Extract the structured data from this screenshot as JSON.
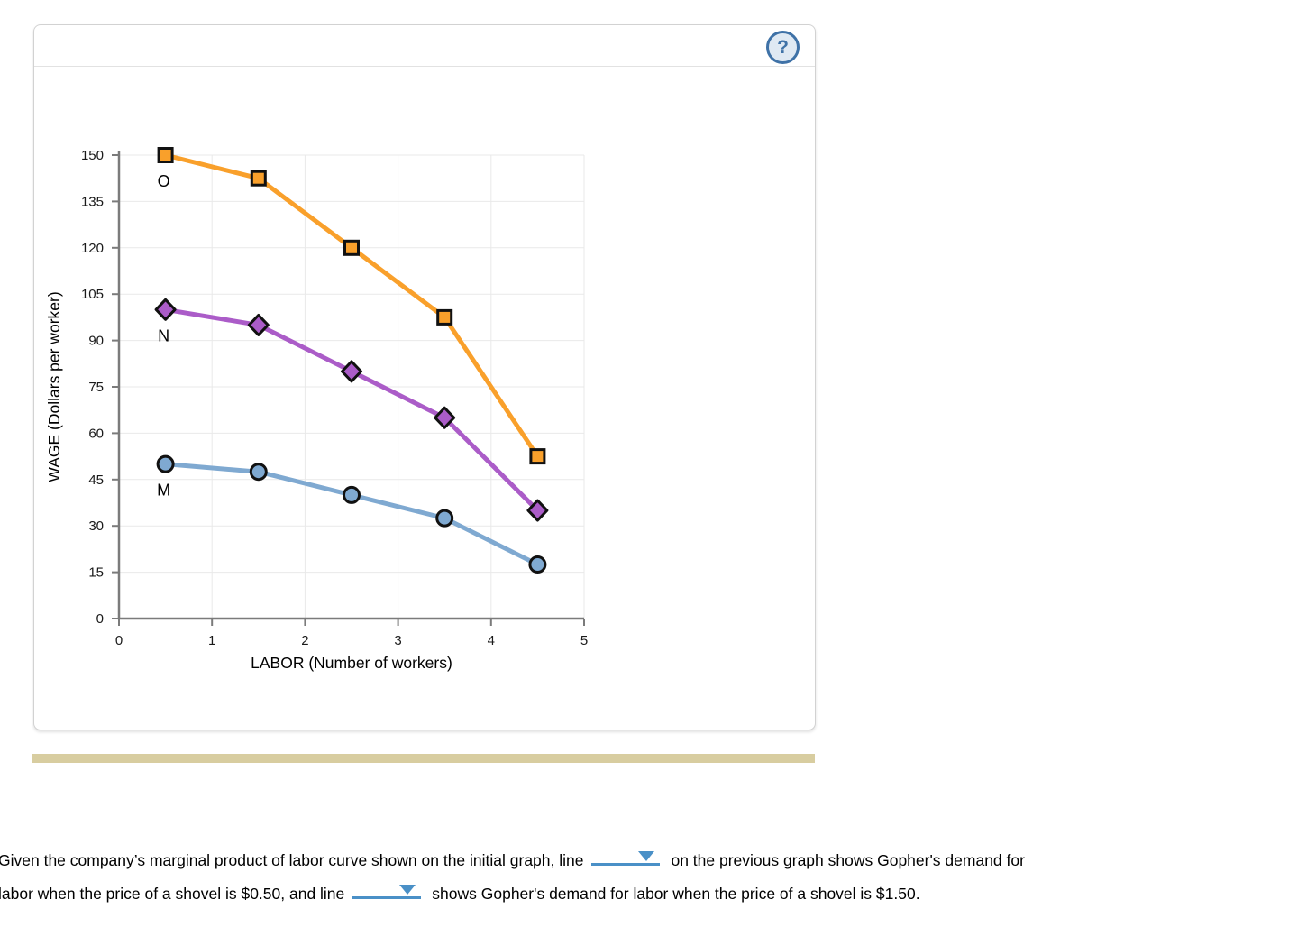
{
  "panel": {
    "help_label": "?"
  },
  "chart_data": {
    "type": "line",
    "x": [
      0.5,
      1.5,
      2.5,
      3.5,
      4.5
    ],
    "series": [
      {
        "name": "O",
        "marker": "square",
        "color": "#F9A02B",
        "values": [
          150,
          142.5,
          120,
          97.5,
          52.5
        ]
      },
      {
        "name": "N",
        "marker": "diamond",
        "color": "#AB5CC8",
        "values": [
          100,
          95,
          80,
          65,
          35
        ]
      },
      {
        "name": "M",
        "marker": "circle",
        "color": "#7FA9D1",
        "values": [
          50,
          47.5,
          40,
          32.5,
          17.5
        ]
      }
    ],
    "title": "",
    "xlabel": "LABOR (Number of workers)",
    "ylabel": "WAGE (Dollars per worker)",
    "xlim": [
      0,
      5
    ],
    "ylim": [
      0,
      150
    ],
    "x_ticks": [
      0,
      1,
      2,
      3,
      4,
      5
    ],
    "y_ticks": [
      0,
      15,
      30,
      45,
      60,
      75,
      90,
      105,
      120,
      135,
      150
    ],
    "grid": true,
    "legend_position": "none"
  },
  "question": {
    "line1_before": "Given the company’s marginal product of labor curve shown on the initial graph, line",
    "line1_after": "on the previous graph shows Gopher's demand for",
    "line2_before": "labor when the price of a shovel is $0.50, and line",
    "line2_after": "shows Gopher's demand for labor when the price of a shovel is $1.50.",
    "dropdown1_value": "",
    "dropdown2_value": ""
  },
  "colors": {
    "dropdown_accent": "#4a90c7",
    "help_icon_blue": "#3f72a7",
    "divider_tan": "#d8cda0",
    "axis_gray": "#7b7b7b",
    "gridline_gray": "#e9e9e9"
  }
}
